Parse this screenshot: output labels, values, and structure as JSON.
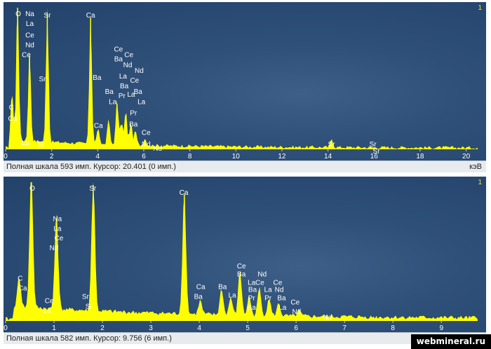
{
  "watermark": "webmineral.ru",
  "colors": {
    "spectrum": "#ffff00",
    "background": "#2a4a72",
    "label": "#ffffff",
    "channel": "#f2e12a"
  },
  "chart_data": [
    {
      "type": "area",
      "channel": "1",
      "xlim": [
        0,
        20.5
      ],
      "x_ticks": [
        0,
        2,
        4,
        6,
        8,
        10,
        12,
        14,
        16,
        18,
        20
      ],
      "unit": "кэВ",
      "status_text": "Полная шкала 593 имп. Курсор: 20.401  (0 имп.)",
      "ymax": 593,
      "peaks": [
        {
          "x": 0.28,
          "h": 34
        },
        {
          "x": 0.52,
          "h": 100
        },
        {
          "x": 1.04,
          "h": 66
        },
        {
          "x": 1.81,
          "h": 96
        },
        {
          "x": 3.69,
          "h": 93
        },
        {
          "x": 4.01,
          "h": 11
        },
        {
          "x": 4.47,
          "h": 18
        },
        {
          "x": 4.84,
          "h": 32
        },
        {
          "x": 5.03,
          "h": 16
        },
        {
          "x": 5.22,
          "h": 24
        },
        {
          "x": 5.44,
          "h": 16
        },
        {
          "x": 5.64,
          "h": 10
        },
        {
          "x": 6.05,
          "h": 5
        },
        {
          "x": 14.16,
          "h": 6
        }
      ],
      "labels": [
        {
          "text": "O",
          "x": 0.55,
          "y": 98
        },
        {
          "text": "Na",
          "x": 1.05,
          "y": 98
        },
        {
          "text": "La",
          "x": 1.05,
          "y": 91
        },
        {
          "text": "Ce",
          "x": 1.05,
          "y": 83
        },
        {
          "text": "Nd",
          "x": 1.05,
          "y": 76
        },
        {
          "text": "Ce",
          "x": 0.9,
          "y": 69
        },
        {
          "text": "Sr",
          "x": 1.81,
          "y": 97
        },
        {
          "text": "Sr",
          "x": 1.6,
          "y": 52
        },
        {
          "text": "Ca",
          "x": 3.69,
          "y": 97
        },
        {
          "text": "Ba",
          "x": 3.97,
          "y": 53
        },
        {
          "text": "C",
          "x": 0.25,
          "y": 32
        },
        {
          "text": "Ca",
          "x": 0.3,
          "y": 24
        },
        {
          "text": "La",
          "x": 0.85,
          "y": 7
        },
        {
          "text": "Sr",
          "x": 1.55,
          "y": 6
        },
        {
          "text": "Ce",
          "x": 4.9,
          "y": 73
        },
        {
          "text": "Ce",
          "x": 5.35,
          "y": 69
        },
        {
          "text": "Ba",
          "x": 4.9,
          "y": 66
        },
        {
          "text": "Nd",
          "x": 5.3,
          "y": 62
        },
        {
          "text": "Nd",
          "x": 5.8,
          "y": 58
        },
        {
          "text": "La",
          "x": 5.1,
          "y": 54
        },
        {
          "text": "Ce",
          "x": 5.6,
          "y": 51
        },
        {
          "text": "Ba",
          "x": 4.5,
          "y": 43
        },
        {
          "text": "Ba",
          "x": 5.15,
          "y": 47
        },
        {
          "text": "Pr",
          "x": 5.05,
          "y": 40
        },
        {
          "text": "La",
          "x": 5.45,
          "y": 41
        },
        {
          "text": "Ba",
          "x": 5.75,
          "y": 43
        },
        {
          "text": "La",
          "x": 4.65,
          "y": 36
        },
        {
          "text": "La",
          "x": 5.9,
          "y": 36
        },
        {
          "text": "Pr",
          "x": 5.55,
          "y": 28
        },
        {
          "text": "Ca",
          "x": 4.03,
          "y": 19
        },
        {
          "text": "Ba",
          "x": 5.55,
          "y": 20
        },
        {
          "text": "Ce",
          "x": 6.1,
          "y": 14
        },
        {
          "text": "Nd",
          "x": 6.1,
          "y": 6
        },
        {
          "text": "Nd",
          "x": 6.6,
          "y": 3
        },
        {
          "text": "Sr",
          "x": 14.15,
          "y": 6
        },
        {
          "text": "Sr",
          "x": 15.95,
          "y": 6
        },
        {
          "text": "Sr",
          "x": 16.1,
          "y": 1
        }
      ]
    },
    {
      "type": "area",
      "channel": "1",
      "xlim": [
        0,
        9.75
      ],
      "x_ticks": [
        0,
        1,
        2,
        3,
        4,
        5,
        6,
        7,
        8,
        9
      ],
      "unit": "",
      "status_text": "Полная шкала 582 имп. Курсор: 9.756  (6 имп.)",
      "ymax": 582,
      "peaks": [
        {
          "x": 0.28,
          "h": 22
        },
        {
          "x": 0.53,
          "h": 100
        },
        {
          "x": 1.05,
          "h": 72
        },
        {
          "x": 1.81,
          "h": 98
        },
        {
          "x": 3.69,
          "h": 91
        },
        {
          "x": 4.02,
          "h": 10
        },
        {
          "x": 4.46,
          "h": 19
        },
        {
          "x": 4.65,
          "h": 13
        },
        {
          "x": 4.84,
          "h": 33
        },
        {
          "x": 5.03,
          "h": 14
        },
        {
          "x": 5.24,
          "h": 20
        },
        {
          "x": 5.44,
          "h": 13
        },
        {
          "x": 5.64,
          "h": 9
        },
        {
          "x": 6.06,
          "h": 4
        }
      ],
      "labels": [
        {
          "text": "O",
          "x": 0.55,
          "y": 98
        },
        {
          "text": "Sr",
          "x": 1.8,
          "y": 98
        },
        {
          "text": "Ca",
          "x": 3.68,
          "y": 95
        },
        {
          "text": "Na",
          "x": 1.07,
          "y": 76
        },
        {
          "text": "La",
          "x": 1.07,
          "y": 69
        },
        {
          "text": "Ce",
          "x": 1.1,
          "y": 62
        },
        {
          "text": "Nd",
          "x": 1.0,
          "y": 55
        },
        {
          "text": "C",
          "x": 0.3,
          "y": 33
        },
        {
          "text": "Ca",
          "x": 0.35,
          "y": 26
        },
        {
          "text": "Ce",
          "x": 0.9,
          "y": 17
        },
        {
          "text": "La",
          "x": 0.85,
          "y": 10
        },
        {
          "text": "Sr",
          "x": 1.65,
          "y": 20
        },
        {
          "text": "Sr",
          "x": 1.72,
          "y": 13
        },
        {
          "text": "Ca",
          "x": 4.03,
          "y": 27
        },
        {
          "text": "Ba",
          "x": 3.98,
          "y": 20
        },
        {
          "text": "Ba",
          "x": 4.48,
          "y": 27
        },
        {
          "text": "La",
          "x": 4.68,
          "y": 21
        },
        {
          "text": "Ce",
          "x": 4.87,
          "y": 42
        },
        {
          "text": "Ba",
          "x": 4.87,
          "y": 36
        },
        {
          "text": "La",
          "x": 5.08,
          "y": 30
        },
        {
          "text": "Nd",
          "x": 5.3,
          "y": 36
        },
        {
          "text": "Ce",
          "x": 5.25,
          "y": 30
        },
        {
          "text": "Ba",
          "x": 5.1,
          "y": 25
        },
        {
          "text": "La",
          "x": 5.42,
          "y": 25
        },
        {
          "text": "Pr",
          "x": 5.08,
          "y": 19
        },
        {
          "text": "Ba",
          "x": 5.08,
          "y": 12
        },
        {
          "text": "Ce",
          "x": 5.62,
          "y": 30
        },
        {
          "text": "Nd",
          "x": 5.65,
          "y": 25
        },
        {
          "text": "Ba",
          "x": 5.7,
          "y": 19
        },
        {
          "text": "Pr",
          "x": 5.42,
          "y": 19
        },
        {
          "text": "La",
          "x": 5.72,
          "y": 12
        },
        {
          "text": "Ce",
          "x": 5.98,
          "y": 16
        },
        {
          "text": "Nd",
          "x": 6.01,
          "y": 9
        },
        {
          "text": "Nd",
          "x": 6.65,
          "y": 5
        }
      ]
    }
  ]
}
